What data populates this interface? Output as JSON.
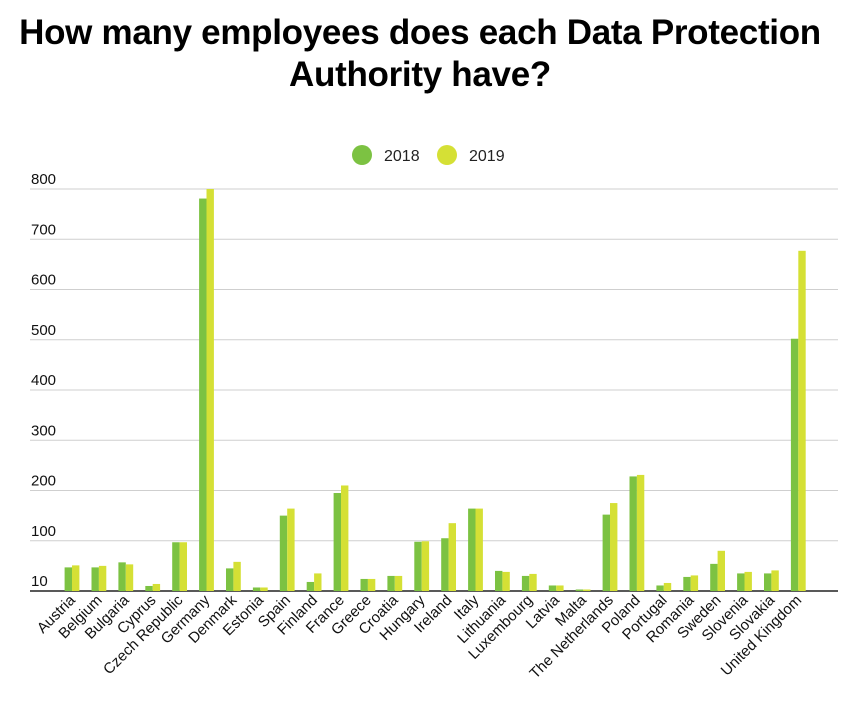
{
  "chart_data": {
    "type": "bar",
    "title": "How many employees does each Data Protection Authority have?",
    "xlabel": "",
    "ylabel": "",
    "ylim": [
      0,
      800
    ],
    "y_ticks": [
      10,
      100,
      200,
      300,
      400,
      500,
      600,
      700,
      800
    ],
    "grid": true,
    "legend_position": "top-center",
    "categories": [
      "Austria",
      "Belgium",
      "Bulgaria",
      "Cyprus",
      "Czech Republic",
      "Germany",
      "Denmark",
      "Estonia",
      "Spain",
      "Finland",
      "France",
      "Greece",
      "Croatia",
      "Hungary",
      "Ireland",
      "Italy",
      "Lithuania",
      "Luxembourg",
      "Latvia",
      "Malta",
      "The Netherlands",
      "Poland",
      "Portugal",
      "Romania",
      "Sweden",
      "Slovenia",
      "Slovakia",
      "United Kingdom"
    ],
    "series": [
      {
        "name": "2018",
        "color": "#7cc242",
        "values": [
          47,
          47,
          57,
          10,
          97,
          781,
          45,
          7,
          150,
          18,
          195,
          24,
          30,
          98,
          105,
          164,
          40,
          30,
          11,
          3,
          152,
          228,
          11,
          28,
          54,
          35,
          35,
          502
        ]
      },
      {
        "name": "2019",
        "color": "#d5e035",
        "values": [
          51,
          50,
          53,
          14,
          97,
          800,
          58,
          7,
          164,
          35,
          210,
          24,
          30,
          99,
          135,
          164,
          38,
          34,
          11,
          3,
          175,
          231,
          16,
          31,
          80,
          38,
          41,
          677
        ]
      }
    ]
  }
}
